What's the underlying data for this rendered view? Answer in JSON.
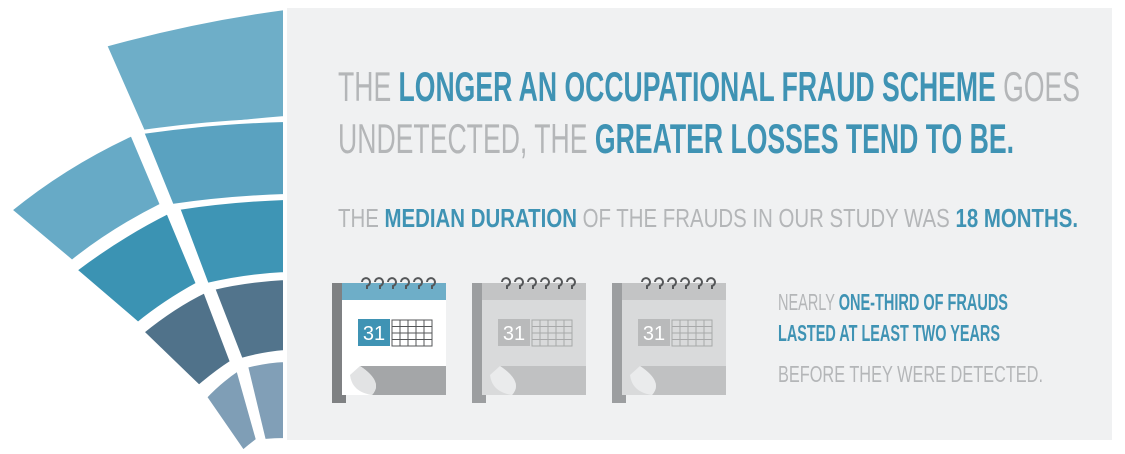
{
  "headline": {
    "lines": [
      [
        {
          "text": "THE ",
          "bold": false
        },
        {
          "text": "LONGER AN OCCUPATIONAL FRAUD SCHEME",
          "bold": true
        },
        {
          "text": " GOES",
          "bold": false
        }
      ],
      [
        {
          "text": "UNDETECTED, THE ",
          "bold": false
        },
        {
          "text": "GREATER LOSSES TEND TO BE.",
          "bold": true
        }
      ]
    ]
  },
  "subline": [
    {
      "text": "THE ",
      "bold": false
    },
    {
      "text": "MEDIAN DURATION",
      "bold": true
    },
    {
      "text": " OF THE FRAUDS IN OUR STUDY WAS ",
      "bold": false
    },
    {
      "text": "18 MONTHS.",
      "bold": true
    }
  ],
  "calendars": [
    {
      "day": "31",
      "highlighted": true
    },
    {
      "day": "31",
      "highlighted": false
    },
    {
      "day": "31",
      "highlighted": false
    }
  ],
  "note": {
    "lines": [
      [
        {
          "text": "NEARLY ",
          "bold": false
        },
        {
          "text": "ONE-THIRD OF FRAUDS",
          "bold": true
        }
      ],
      [
        {
          "text": "LASTED AT LEAST TWO YEARS",
          "bold": true
        }
      ],
      [
        {
          "text": "BEFORE THEY WERE DETECTED.",
          "bold": false
        }
      ]
    ]
  }
}
